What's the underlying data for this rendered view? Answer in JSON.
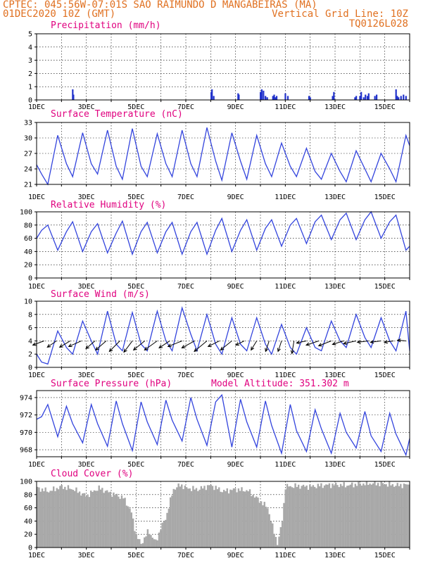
{
  "header": {
    "line1_left": "CPTEC:  045:56W-07:01S  SAO RAIMUNDO D MANGABEIRAS (MA)",
    "line2_left": "01DEC2020 10Z (GMT)",
    "line2_right": "Vertical Grid Line: 10Z",
    "line3_right": "TQ0126L028"
  },
  "x_tick_labels": [
    "1DEC",
    "3DEC",
    "5DEC",
    "7DEC",
    "9DEC",
    "11DEC",
    "13DEC",
    "15DEC"
  ],
  "chart_data": [
    {
      "id": "precip",
      "type": "bar",
      "title": "Precipitation (mm/h)",
      "ylim": [
        0,
        5
      ],
      "yticks": [
        0,
        1,
        2,
        3,
        4,
        5
      ],
      "x": [
        2.45,
        2.48,
        8.02,
        8.05,
        8.12,
        9.1,
        9.13,
        10.0,
        10.05,
        10.12,
        10.2,
        10.27,
        10.5,
        10.55,
        10.6,
        10.65,
        11.0,
        11.1,
        11.95,
        12.0,
        12.9,
        12.95,
        13.8,
        13.85,
        14.0,
        14.05,
        14.15,
        14.22,
        14.3,
        14.35,
        14.6,
        14.67,
        15.45,
        15.5,
        15.55,
        15.65,
        15.75,
        15.85
      ],
      "values": [
        0.8,
        0.4,
        0.6,
        0.8,
        0.3,
        0.5,
        0.4,
        0.6,
        0.8,
        0.7,
        0.3,
        0.2,
        0.3,
        0.4,
        0.2,
        0.3,
        0.5,
        0.3,
        0.3,
        0.2,
        0.3,
        0.6,
        0.2,
        0.3,
        0.3,
        0.6,
        0.2,
        0.4,
        0.3,
        0.5,
        0.3,
        0.4,
        0.8,
        0.3,
        0.2,
        0.3,
        0.4,
        0.3
      ]
    },
    {
      "id": "temp",
      "type": "line",
      "title": "Surface Temperature (nC)",
      "ylim": [
        21,
        33
      ],
      "yticks": [
        21,
        24,
        27,
        30,
        33
      ],
      "x": [
        1.0,
        1.2,
        1.45,
        1.85,
        2.2,
        2.45,
        2.85,
        3.2,
        3.45,
        3.85,
        4.2,
        4.45,
        4.85,
        5.2,
        5.45,
        5.85,
        6.2,
        6.45,
        6.85,
        7.2,
        7.45,
        7.85,
        8.2,
        8.45,
        8.85,
        9.2,
        9.45,
        9.85,
        10.2,
        10.45,
        10.85,
        11.2,
        11.45,
        11.85,
        12.2,
        12.45,
        12.85,
        13.2,
        13.45,
        13.85,
        14.2,
        14.45,
        14.85,
        15.2,
        15.45,
        15.85,
        16.0
      ],
      "values": [
        24.8,
        23.0,
        21.0,
        30.5,
        25.0,
        22.5,
        31.0,
        25.0,
        23.0,
        31.5,
        24.5,
        22.0,
        31.8,
        24.5,
        22.5,
        30.8,
        25.0,
        22.5,
        31.5,
        25.0,
        22.5,
        32.0,
        25.5,
        21.8,
        31.0,
        25.5,
        22.0,
        30.5,
        25.0,
        22.5,
        29.0,
        24.5,
        22.5,
        28.0,
        23.5,
        22.0,
        27.0,
        23.5,
        21.5,
        27.5,
        24.0,
        21.5,
        27.0,
        24.0,
        21.5,
        30.5,
        28.5
      ]
    },
    {
      "id": "rh",
      "type": "line",
      "title": "Relative Humidity (%)",
      "ylim": [
        0,
        100
      ],
      "yticks": [
        0,
        20,
        40,
        60,
        80,
        100
      ],
      "x": [
        1.0,
        1.2,
        1.45,
        1.85,
        2.2,
        2.45,
        2.85,
        3.2,
        3.45,
        3.85,
        4.2,
        4.45,
        4.85,
        5.2,
        5.45,
        5.85,
        6.2,
        6.45,
        6.85,
        7.2,
        7.45,
        7.85,
        8.2,
        8.45,
        8.85,
        9.2,
        9.45,
        9.85,
        10.2,
        10.45,
        10.85,
        11.2,
        11.45,
        11.85,
        12.2,
        12.45,
        12.85,
        13.2,
        13.45,
        13.85,
        14.2,
        14.45,
        14.85,
        15.2,
        15.45,
        15.85,
        16.0
      ],
      "values": [
        60.0,
        72.0,
        80.0,
        42.0,
        70.0,
        85.0,
        40.0,
        70.0,
        82.0,
        38.0,
        68.0,
        86.0,
        36.0,
        70.0,
        84.0,
        38.0,
        70.0,
        84.0,
        36.0,
        70.0,
        84.0,
        36.0,
        72.0,
        90.0,
        40.0,
        72.0,
        88.0,
        42.0,
        75.0,
        88.0,
        48.0,
        80.0,
        90.0,
        52.0,
        85.0,
        95.0,
        58.0,
        88.0,
        98.0,
        58.0,
        88.0,
        100.0,
        60.0,
        85.0,
        95.0,
        42.0,
        48.0
      ]
    },
    {
      "id": "wind",
      "type": "line",
      "title": "Surface Wind (m/s)",
      "ylim": [
        0,
        10
      ],
      "yticks": [
        0,
        2,
        4,
        6,
        8,
        10
      ],
      "x": [
        1.0,
        1.2,
        1.45,
        1.85,
        2.2,
        2.45,
        2.85,
        3.2,
        3.45,
        3.85,
        4.2,
        4.45,
        4.85,
        5.2,
        5.45,
        5.85,
        6.2,
        6.45,
        6.85,
        7.2,
        7.45,
        7.85,
        8.2,
        8.45,
        8.85,
        9.2,
        9.45,
        9.85,
        10.2,
        10.45,
        10.85,
        11.2,
        11.45,
        11.85,
        12.2,
        12.45,
        12.85,
        13.2,
        13.45,
        13.85,
        14.2,
        14.45,
        14.85,
        15.2,
        15.45,
        15.85,
        16.0
      ],
      "values": [
        2.0,
        0.8,
        0.5,
        5.5,
        3.0,
        2.0,
        7.0,
        4.0,
        2.0,
        8.5,
        3.5,
        2.5,
        8.3,
        3.5,
        2.5,
        8.5,
        4.0,
        2.5,
        9.0,
        5.0,
        2.5,
        8.0,
        3.5,
        2.0,
        7.5,
        3.5,
        2.5,
        7.5,
        3.5,
        2.0,
        6.5,
        3.0,
        2.0,
        6.0,
        3.0,
        2.5,
        7.0,
        4.0,
        3.0,
        8.0,
        4.5,
        3.0,
        7.5,
        4.0,
        2.5,
        8.5,
        2.5
      ],
      "arrows": [
        {
          "x": 1.3,
          "u": -1.6,
          "v": -0.6
        },
        {
          "x": 1.8,
          "u": -1.3,
          "v": -0.9
        },
        {
          "x": 2.35,
          "u": -1.5,
          "v": -0.9
        },
        {
          "x": 2.8,
          "u": -1.8,
          "v": -0.8
        },
        {
          "x": 3.35,
          "u": -1.3,
          "v": -1.1
        },
        {
          "x": 3.8,
          "u": -1.5,
          "v": -1.3
        },
        {
          "x": 4.35,
          "u": -1.5,
          "v": -1.5
        },
        {
          "x": 4.85,
          "u": -1.2,
          "v": -1.6
        },
        {
          "x": 5.35,
          "u": -1.6,
          "v": -1.3
        },
        {
          "x": 5.85,
          "u": -1.8,
          "v": -1.3
        },
        {
          "x": 6.35,
          "u": -1.5,
          "v": -1.0
        },
        {
          "x": 6.85,
          "u": -2.0,
          "v": -0.8
        },
        {
          "x": 7.35,
          "u": -1.8,
          "v": -1.0
        },
        {
          "x": 7.85,
          "u": -1.8,
          "v": -1.5
        },
        {
          "x": 8.35,
          "u": -1.6,
          "v": -0.8
        },
        {
          "x": 8.85,
          "u": -1.6,
          "v": -1.3
        },
        {
          "x": 9.35,
          "u": -1.2,
          "v": -0.6
        },
        {
          "x": 9.85,
          "u": -0.8,
          "v": -1.3
        },
        {
          "x": 10.35,
          "u": -0.5,
          "v": -1.5
        },
        {
          "x": 10.85,
          "u": -0.5,
          "v": -1.5
        },
        {
          "x": 11.35,
          "u": -0.3,
          "v": -1.8
        },
        {
          "x": 11.85,
          "u": -1.4,
          "v": -0.3
        },
        {
          "x": 12.35,
          "u": -1.8,
          "v": -0.6
        },
        {
          "x": 12.85,
          "u": -1.8,
          "v": -0.7
        },
        {
          "x": 13.35,
          "u": -1.6,
          "v": -0.5
        },
        {
          "x": 13.85,
          "u": -1.8,
          "v": -0.4
        },
        {
          "x": 14.35,
          "u": -1.6,
          "v": -0.2
        },
        {
          "x": 14.85,
          "u": -1.5,
          "v": -0.2
        },
        {
          "x": 15.35,
          "u": -1.3,
          "v": -0.2
        },
        {
          "x": 15.85,
          "u": -1.2,
          "v": 0.1
        }
      ]
    },
    {
      "id": "pressure",
      "type": "line",
      "title": "Surface Pressure (hPa)",
      "annotation": "Model Altitude: 351.302 m",
      "ylim": [
        967.2,
        974.8
      ],
      "yticks": [
        968,
        970,
        972,
        974
      ],
      "x": [
        1.0,
        1.2,
        1.45,
        1.85,
        2.2,
        2.45,
        2.85,
        3.2,
        3.45,
        3.85,
        4.2,
        4.45,
        4.85,
        5.2,
        5.45,
        5.85,
        6.2,
        6.45,
        6.85,
        7.2,
        7.45,
        7.85,
        8.2,
        8.45,
        8.85,
        9.2,
        9.45,
        9.85,
        10.2,
        10.45,
        10.85,
        11.2,
        11.45,
        11.85,
        12.2,
        12.45,
        12.85,
        13.2,
        13.45,
        13.85,
        14.2,
        14.45,
        14.85,
        15.2,
        15.45,
        15.85,
        16.0
      ],
      "values": [
        971.5,
        971.8,
        973.2,
        969.5,
        973.0,
        971.0,
        968.8,
        973.2,
        971.0,
        968.4,
        973.6,
        971.0,
        967.9,
        973.5,
        971.2,
        968.6,
        973.7,
        971.4,
        969.0,
        974.0,
        971.5,
        968.5,
        973.5,
        974.3,
        968.3,
        973.8,
        971.2,
        968.3,
        973.6,
        970.8,
        967.6,
        973.2,
        970.2,
        967.8,
        972.6,
        970.4,
        967.6,
        972.2,
        970.0,
        968.2,
        972.4,
        969.6,
        967.8,
        972.2,
        969.8,
        967.4,
        969.3
      ]
    },
    {
      "id": "cloud",
      "type": "area",
      "title": "Cloud Cover (%)",
      "ylim": [
        0,
        100
      ],
      "yticks": [
        0,
        20,
        40,
        60,
        80,
        100
      ],
      "x": [
        1.0,
        1.5,
        2.0,
        2.5,
        3.0,
        3.5,
        4.0,
        4.5,
        4.8,
        5.0,
        5.2,
        5.5,
        5.8,
        6.0,
        6.2,
        6.5,
        6.8,
        7.0,
        7.5,
        8.0,
        8.5,
        9.0,
        9.5,
        10.0,
        10.3,
        10.5,
        10.7,
        10.9,
        11.0,
        11.5,
        12.0,
        12.5,
        13.0,
        13.5,
        14.0,
        14.5,
        15.0,
        15.5,
        16.0
      ],
      "values": [
        90.0,
        85.0,
        92.0,
        88.0,
        78.0,
        90.0,
        82.0,
        75.0,
        55.0,
        20.0,
        5.0,
        25.0,
        8.0,
        30.0,
        45.0,
        88.0,
        95.0,
        90.0,
        88.0,
        94.0,
        85.0,
        88.0,
        86.0,
        70.0,
        60.0,
        30.0,
        5.0,
        45.0,
        92.0,
        93.0,
        92.0,
        94.0,
        95.0,
        94.0,
        96.0,
        97.0,
        96.0,
        94.0,
        95.0
      ]
    }
  ]
}
